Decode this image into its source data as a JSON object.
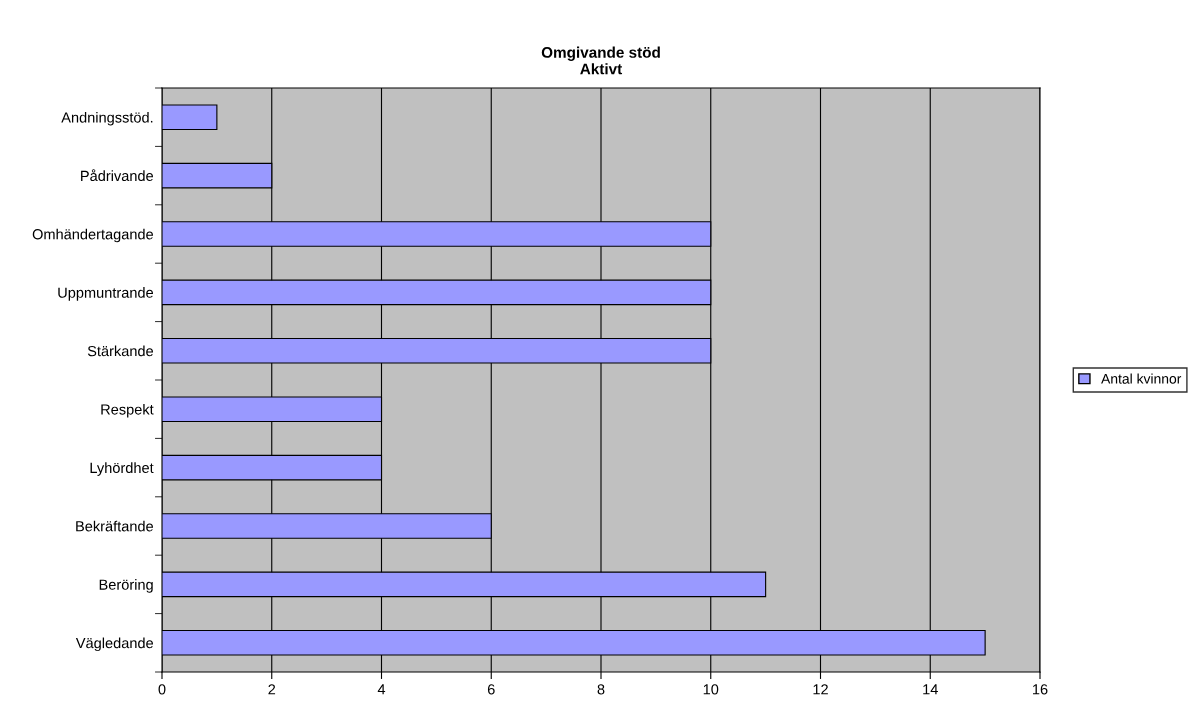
{
  "chart_data": {
    "type": "bar",
    "orientation": "horizontal",
    "title": "Omgivande stöd\nAktivt",
    "categories": [
      "Andningsstöd.",
      "Pådrivande",
      "Omhändertagande",
      "Uppmuntrande",
      "Stärkande",
      "Respekt",
      "Lyhördhet",
      "Bekräftande",
      "Beröring",
      "Vägledande"
    ],
    "series": [
      {
        "name": "Antal kvinnor",
        "color": "#9999ff",
        "values": [
          1,
          2,
          10,
          10,
          10,
          4,
          4,
          6,
          11,
          15
        ]
      }
    ],
    "xlim": [
      0,
      16
    ],
    "xticks": [
      0,
      2,
      4,
      6,
      8,
      10,
      12,
      14,
      16
    ],
    "grid": "x",
    "legend": "right"
  }
}
